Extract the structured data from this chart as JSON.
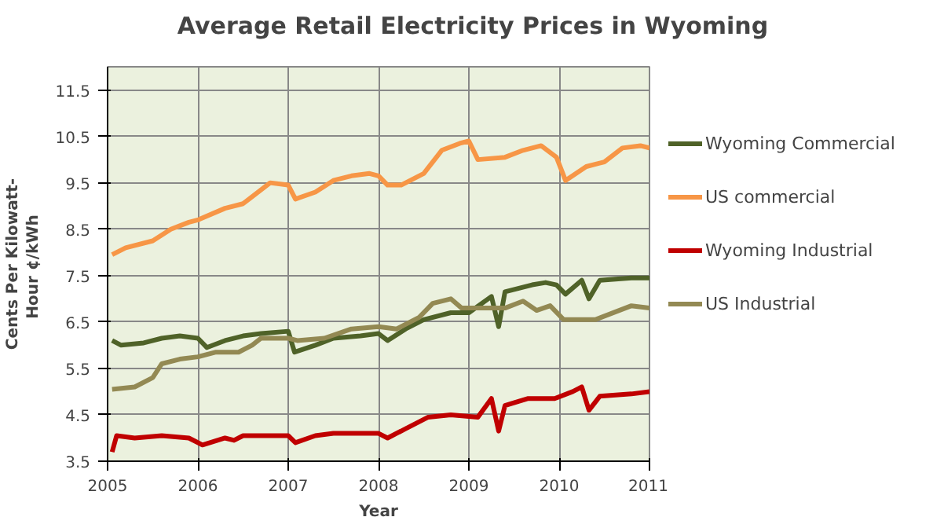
{
  "chart_data": {
    "type": "line",
    "title": "Average Retail Electricity Prices in Wyoming",
    "xlabel": "Year",
    "ylabel": "Cents Per Kilowatt-\nHour  ¢/kWh",
    "xlim": [
      2005,
      2011
    ],
    "xticks": [
      2005,
      2006,
      2007,
      2008,
      2009,
      2010,
      2011
    ],
    "ylim": [
      3.5,
      12.0
    ],
    "yticks": [
      3.5,
      4.5,
      5.5,
      6.5,
      7.5,
      8.5,
      9.5,
      10.5,
      11.5
    ],
    "grid": true,
    "legend": "right",
    "marker": "none",
    "line_style": "solid",
    "series": [
      {
        "name": "Wyoming Commercial",
        "color": "#4f6228",
        "x": [
          2005.05,
          2005.15,
          2005.4,
          2005.6,
          2005.8,
          2006.0,
          2006.1,
          2006.3,
          2006.5,
          2006.7,
          2007.0,
          2007.07,
          2007.3,
          2007.5,
          2007.8,
          2008.0,
          2008.1,
          2008.3,
          2008.5,
          2008.8,
          2009.0,
          2009.25,
          2009.33,
          2009.4,
          2009.7,
          2009.85,
          2009.97,
          2010.07,
          2010.25,
          2010.33,
          2010.45,
          2010.8,
          2011.0
        ],
        "values": [
          6.1,
          6.0,
          6.05,
          6.15,
          6.2,
          6.15,
          5.95,
          6.1,
          6.2,
          6.25,
          6.3,
          5.85,
          6.0,
          6.15,
          6.2,
          6.25,
          6.1,
          6.35,
          6.55,
          6.7,
          6.7,
          7.05,
          6.4,
          7.15,
          7.3,
          7.35,
          7.3,
          7.1,
          7.4,
          7.0,
          7.4,
          7.45,
          7.45
        ]
      },
      {
        "name": "US commercial",
        "color": "#f79646",
        "x": [
          2005.05,
          2005.2,
          2005.5,
          2005.7,
          2005.9,
          2006.0,
          2006.3,
          2006.5,
          2006.8,
          2007.0,
          2007.08,
          2007.3,
          2007.5,
          2007.7,
          2007.9,
          2008.0,
          2008.1,
          2008.25,
          2008.5,
          2008.7,
          2008.9,
          2009.0,
          2009.1,
          2009.4,
          2009.6,
          2009.8,
          2009.97,
          2010.07,
          2010.3,
          2010.5,
          2010.7,
          2010.9,
          2011.0
        ],
        "values": [
          7.95,
          8.1,
          8.25,
          8.5,
          8.65,
          8.7,
          8.95,
          9.05,
          9.5,
          9.45,
          9.15,
          9.3,
          9.55,
          9.65,
          9.7,
          9.65,
          9.45,
          9.45,
          9.7,
          10.2,
          10.35,
          10.4,
          10.0,
          10.05,
          10.2,
          10.3,
          10.05,
          9.55,
          9.85,
          9.95,
          10.25,
          10.3,
          10.25
        ]
      },
      {
        "name": "Wyoming Industrial",
        "color": "#c00000",
        "x": [
          2005.05,
          2005.1,
          2005.3,
          2005.6,
          2005.9,
          2006.05,
          2006.3,
          2006.4,
          2006.5,
          2006.8,
          2007.0,
          2007.08,
          2007.3,
          2007.5,
          2008.0,
          2008.1,
          2008.3,
          2008.55,
          2008.8,
          2009.1,
          2009.25,
          2009.33,
          2009.4,
          2009.65,
          2009.95,
          2010.15,
          2010.25,
          2010.33,
          2010.45,
          2010.8,
          2011.0
        ],
        "values": [
          3.7,
          4.05,
          4.0,
          4.05,
          4.0,
          3.85,
          4.0,
          3.95,
          4.05,
          4.05,
          4.05,
          3.9,
          4.05,
          4.1,
          4.1,
          4.0,
          4.2,
          4.45,
          4.5,
          4.45,
          4.85,
          4.15,
          4.7,
          4.85,
          4.85,
          5.0,
          5.1,
          4.6,
          4.9,
          4.95,
          5.0
        ]
      },
      {
        "name": "US Industrial",
        "color": "#938953",
        "x": [
          2005.05,
          2005.3,
          2005.5,
          2005.6,
          2005.8,
          2006.0,
          2006.2,
          2006.45,
          2006.6,
          2006.7,
          2007.0,
          2007.1,
          2007.4,
          2007.7,
          2008.0,
          2008.2,
          2008.45,
          2008.6,
          2008.8,
          2008.92,
          2009.1,
          2009.4,
          2009.6,
          2009.75,
          2009.9,
          2010.05,
          2010.4,
          2010.8,
          2011.0
        ],
        "values": [
          5.05,
          5.1,
          5.3,
          5.6,
          5.7,
          5.75,
          5.85,
          5.85,
          6.0,
          6.15,
          6.15,
          6.1,
          6.15,
          6.35,
          6.4,
          6.35,
          6.6,
          6.9,
          7.0,
          6.8,
          6.8,
          6.8,
          6.95,
          6.75,
          6.85,
          6.55,
          6.55,
          6.85,
          6.8
        ]
      }
    ]
  }
}
